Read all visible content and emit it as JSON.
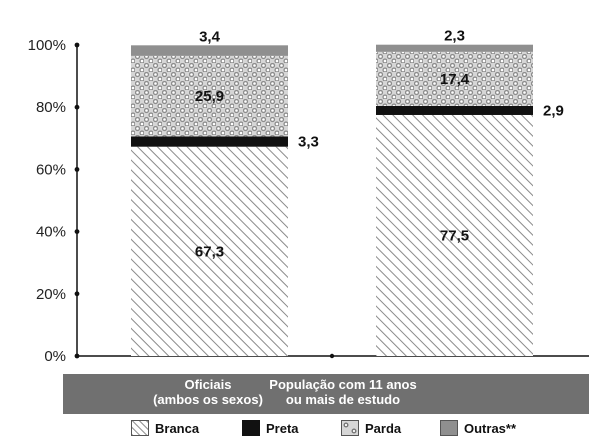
{
  "chart_data": {
    "type": "bar",
    "stacked": true,
    "categories": [
      "Oficiais\n(ambos os sexos)",
      "População com 11 anos\nou mais de estudo"
    ],
    "series": [
      {
        "name": "Branca",
        "values": [
          67.3,
          77.5
        ],
        "labels": [
          "67,3",
          "77,5"
        ],
        "pattern": "diagonal-hatch",
        "color": "#ffffff"
      },
      {
        "name": "Preta",
        "values": [
          3.3,
          2.9
        ],
        "labels": [
          "3,3",
          "2,9"
        ],
        "pattern": "solid",
        "color": "#111111"
      },
      {
        "name": "Parda",
        "values": [
          25.9,
          17.4
        ],
        "labels": [
          "25,9",
          "17,4"
        ],
        "pattern": "dots",
        "color": "#bdbdbd"
      },
      {
        "name": "Outras**",
        "values": [
          3.4,
          2.3
        ],
        "labels": [
          "3,4",
          "2,3"
        ],
        "pattern": "solid",
        "color": "#8f8f8f"
      }
    ],
    "yticks": [
      "0%",
      "20%",
      "40%",
      "60%",
      "80%",
      "100%"
    ],
    "ylim": [
      0,
      100
    ],
    "xlabel": "",
    "ylabel": "",
    "title": "",
    "legend_position": "bottom"
  }
}
